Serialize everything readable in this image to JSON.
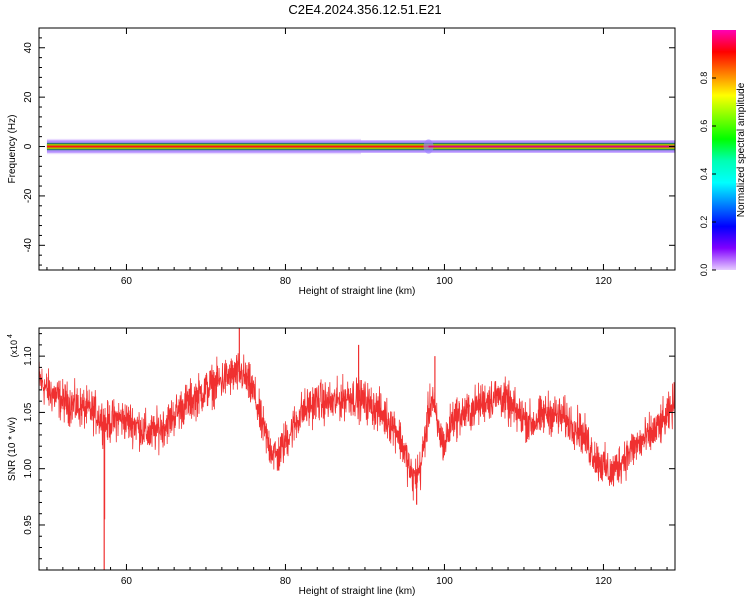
{
  "title": "C2E4.2024.356.12.51.E21",
  "chart_data": [
    {
      "type": "heatmap",
      "xlabel": "Height of straight line (km)",
      "ylabel": "Frequency (Hz)",
      "xlim": [
        49,
        129
      ],
      "ylim": [
        -50,
        48
      ],
      "xticks": [
        60,
        80,
        100,
        120
      ],
      "yticks": [
        -40,
        -20,
        0,
        20,
        40
      ],
      "colorbar": {
        "label": "Normalized spectral amplitude",
        "range": [
          0,
          1
        ],
        "ticks": [
          0.0,
          0.2,
          0.4,
          0.6,
          0.8
        ],
        "tick_labels": [
          "0.0",
          "0.2",
          "0.4",
          "0.6",
          "0.8"
        ],
        "colors": [
          "#ff00b4",
          "#ff0000",
          "#ff8000",
          "#ffff00",
          "#80ff00",
          "#00ff00",
          "#00ffb4",
          "#00ffff",
          "#0080ff",
          "#0000ff",
          "#8000ff",
          "#e6ccff"
        ]
      },
      "band": {
        "x_start": 50,
        "x_end": 129,
        "center_freq": 0,
        "half_width_hz": 1.5,
        "spread_hz": 2.5,
        "blob_x": 98
      }
    },
    {
      "type": "line",
      "xlabel": "Height of straight line (km)",
      "ylabel": "SNR (10 * v/v)",
      "yunit": "(x10",
      "yunit_exp": "4",
      "xlim": [
        49,
        129
      ],
      "ylim": [
        0.91,
        1.125
      ],
      "xticks": [
        60,
        80,
        100,
        120
      ],
      "yticks": [
        0.95,
        1.0,
        1.05,
        1.1
      ],
      "ytick_labels": [
        "0.95",
        "1.00",
        "1.05",
        "1.10"
      ],
      "color": "#f03030",
      "trend": [
        [
          49,
          1.08
        ],
        [
          50,
          1.07
        ],
        [
          52,
          1.06
        ],
        [
          54,
          1.055
        ],
        [
          56,
          1.05
        ],
        [
          57.5,
          1.04
        ],
        [
          59,
          1.045
        ],
        [
          61,
          1.04
        ],
        [
          63,
          1.03
        ],
        [
          65,
          1.04
        ],
        [
          67,
          1.055
        ],
        [
          69,
          1.065
        ],
        [
          71,
          1.075
        ],
        [
          73,
          1.082
        ],
        [
          74.5,
          1.085
        ],
        [
          76,
          1.068
        ],
        [
          77,
          1.04
        ],
        [
          78,
          1.02
        ],
        [
          79,
          1.01
        ],
        [
          80,
          1.025
        ],
        [
          82,
          1.05
        ],
        [
          84,
          1.06
        ],
        [
          86,
          1.058
        ],
        [
          88,
          1.065
        ],
        [
          90,
          1.06
        ],
        [
          92,
          1.05
        ],
        [
          94,
          1.035
        ],
        [
          95,
          1.015
        ],
        [
          96,
          0.99
        ],
        [
          97,
          1.0
        ],
        [
          98,
          1.05
        ],
        [
          98.5,
          1.065
        ],
        [
          99,
          1.04
        ],
        [
          100,
          1.02
        ],
        [
          101,
          1.045
        ],
        [
          103,
          1.05
        ],
        [
          105,
          1.06
        ],
        [
          107,
          1.065
        ],
        [
          109,
          1.05
        ],
        [
          111,
          1.04
        ],
        [
          113,
          1.05
        ],
        [
          115,
          1.045
        ],
        [
          117,
          1.035
        ],
        [
          119,
          1.01
        ],
        [
          121,
          0.995
        ],
        [
          122,
          1.005
        ],
        [
          124,
          1.02
        ],
        [
          126,
          1.03
        ],
        [
          128,
          1.045
        ],
        [
          129,
          1.06
        ]
      ],
      "noise_amplitude": 0.009,
      "spikes": [
        {
          "x": 57.2,
          "y": 0.91
        },
        {
          "x": 57.25,
          "y": 0.955
        },
        {
          "x": 74.2,
          "y": 1.125
        },
        {
          "x": 89.2,
          "y": 1.11
        },
        {
          "x": 96.5,
          "y": 0.968
        },
        {
          "x": 98.8,
          "y": 1.1
        }
      ]
    }
  ]
}
